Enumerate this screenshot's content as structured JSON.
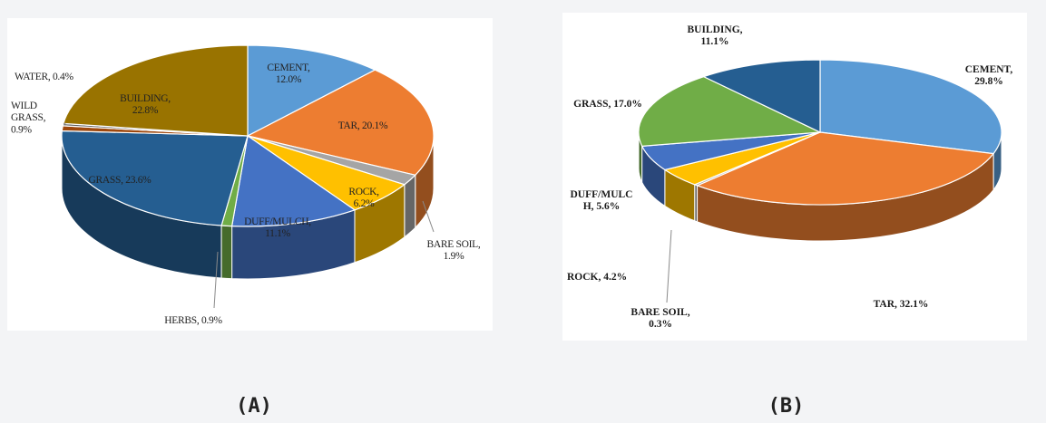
{
  "panels": [
    {
      "label": "(A)"
    },
    {
      "label": "(B)"
    }
  ],
  "chart_data": [
    {
      "type": "pie",
      "title": "",
      "slices": [
        {
          "name": "CEMENT",
          "value": 12.0,
          "display": "12.0%",
          "color": "#5b9bd5"
        },
        {
          "name": "TAR",
          "value": 20.1,
          "display": "20.1%",
          "color": "#ed7d31"
        },
        {
          "name": "BARE SOIL",
          "value": 1.9,
          "display": "1.9%",
          "color": "#a5a5a5"
        },
        {
          "name": "ROCK",
          "value": 6.2,
          "display": "6.2%",
          "color": "#ffc000"
        },
        {
          "name": "DUFF/MULCH",
          "value": 11.1,
          "display": "11.1%",
          "color": "#4472c4"
        },
        {
          "name": "HERBS",
          "value": 0.9,
          "display": "0.9%",
          "color": "#70ad47"
        },
        {
          "name": "GRASS",
          "value": 23.6,
          "display": "23.6%",
          "color": "#255e91"
        },
        {
          "name": "WILD GRASS",
          "value": 0.9,
          "display": "0.9%",
          "color": "#9e480e"
        },
        {
          "name": "WATER",
          "value": 0.4,
          "display": "0.4%",
          "color": "#636363"
        },
        {
          "name": "BUILDING",
          "value": 22.8,
          "display": "22.8%",
          "color": "#997300"
        }
      ]
    },
    {
      "type": "pie",
      "title": "",
      "slices": [
        {
          "name": "CEMENT",
          "value": 29.8,
          "display": "29.8%",
          "color": "#5b9bd5"
        },
        {
          "name": "TAR",
          "value": 32.1,
          "display": "32.1%",
          "color": "#ed7d31"
        },
        {
          "name": "BARE SOIL",
          "value": 0.3,
          "display": "0.3%",
          "color": "#a5a5a5"
        },
        {
          "name": "ROCK",
          "value": 4.2,
          "display": "4.2%",
          "color": "#ffc000"
        },
        {
          "name": "DUFF/MULCH",
          "value": 5.6,
          "display": "5.6%",
          "color": "#4472c4"
        },
        {
          "name": "GRASS",
          "value": 17.0,
          "display": "17.0%",
          "color": "#70ad47"
        },
        {
          "name": "BUILDING",
          "value": 11.1,
          "display": "11.1%",
          "color": "#255e91"
        }
      ]
    }
  ]
}
